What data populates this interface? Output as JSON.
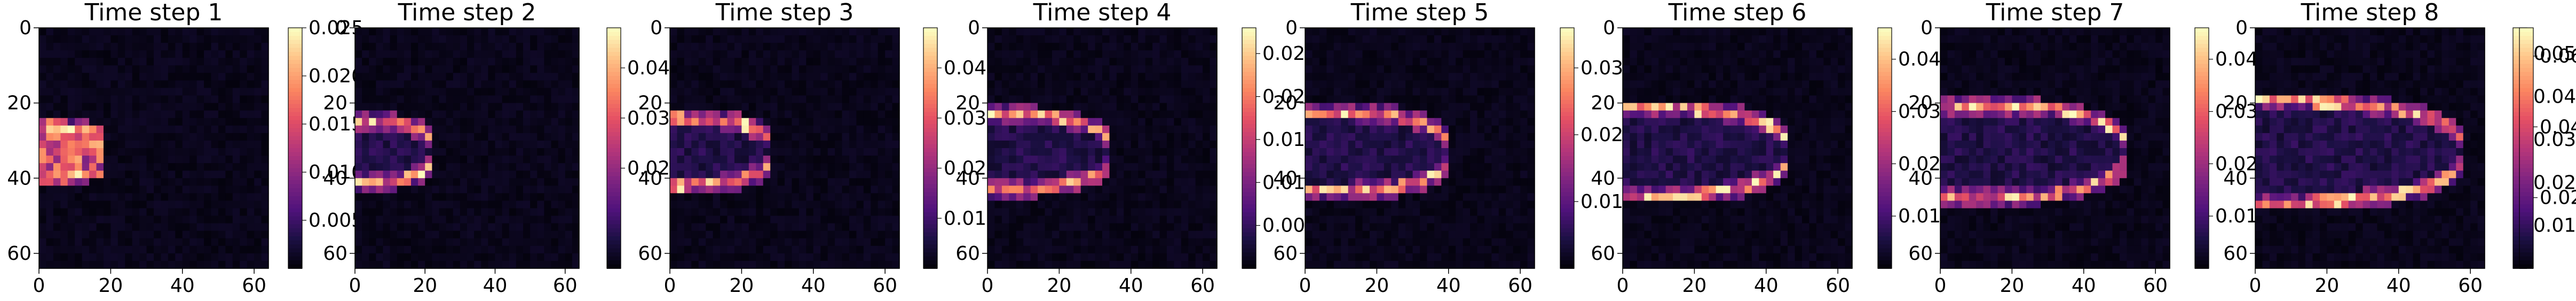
{
  "chart_data": {
    "type": "heatmap",
    "colormap": "magma",
    "grid": false,
    "panels": [
      {
        "title": "Time step 1",
        "x_ticks": [
          "0",
          "20",
          "40",
          "60"
        ],
        "y_ticks": [
          "0",
          "20",
          "40",
          "60"
        ],
        "colorbar_ticks": [
          "0.025",
          "0.020",
          "0.015",
          "0.010",
          "0.005"
        ],
        "colorbar_values": [
          0.025,
          0.02,
          0.015,
          0.01,
          0.005
        ],
        "vmax": 0.025,
        "xlim": [
          0,
          64
        ],
        "ylim": [
          64,
          0
        ]
      },
      {
        "title": "Time step 2",
        "x_ticks": [
          "0",
          "20",
          "40",
          "60"
        ],
        "y_ticks": [
          "0",
          "20",
          "40",
          "60"
        ],
        "colorbar_ticks": [
          "0.04",
          "0.03",
          "0.02"
        ],
        "colorbar_values": [
          0.04,
          0.03,
          0.02
        ],
        "vmax": 0.048,
        "xlim": [
          0,
          64
        ],
        "ylim": [
          64,
          0
        ]
      },
      {
        "title": "Time step 3",
        "x_ticks": [
          "0",
          "20",
          "40",
          "60"
        ],
        "y_ticks": [
          "0",
          "20",
          "40",
          "60"
        ],
        "colorbar_ticks": [
          "0.04",
          "0.03",
          "0.02",
          "0.01"
        ],
        "colorbar_values": [
          0.04,
          0.03,
          0.02,
          0.01
        ],
        "vmax": 0.048,
        "xlim": [
          0,
          64
        ],
        "ylim": [
          64,
          0
        ]
      },
      {
        "title": "Time step 4",
        "x_ticks": [
          "0",
          "20",
          "40",
          "60"
        ],
        "y_ticks": [
          "0",
          "20",
          "40",
          "60"
        ],
        "colorbar_ticks": [
          "0.025",
          "0.020",
          "0.015",
          "0.010",
          "0.005"
        ],
        "colorbar_values": [
          0.025,
          0.02,
          0.015,
          0.01,
          0.005
        ],
        "vmax": 0.028,
        "xlim": [
          0,
          64
        ],
        "ylim": [
          64,
          0
        ]
      },
      {
        "title": "Time step 5",
        "x_ticks": [
          "0",
          "20",
          "40",
          "60"
        ],
        "y_ticks": [
          "0",
          "20",
          "40",
          "60"
        ],
        "colorbar_ticks": [
          "0.03",
          "0.02",
          "0.01"
        ],
        "colorbar_values": [
          0.03,
          0.02,
          0.01
        ],
        "vmax": 0.036,
        "xlim": [
          0,
          64
        ],
        "ylim": [
          64,
          0
        ]
      },
      {
        "title": "Time step 6",
        "x_ticks": [
          "0",
          "20",
          "40",
          "60"
        ],
        "y_ticks": [
          "0",
          "20",
          "40",
          "60"
        ],
        "colorbar_ticks": [
          "0.04",
          "0.03",
          "0.02",
          "0.01"
        ],
        "colorbar_values": [
          0.04,
          0.03,
          0.02,
          0.01
        ],
        "vmax": 0.046,
        "xlim": [
          0,
          64
        ],
        "ylim": [
          64,
          0
        ]
      },
      {
        "title": "Time step 7",
        "x_ticks": [
          "0",
          "20",
          "40",
          "60"
        ],
        "y_ticks": [
          "0",
          "20",
          "40",
          "60"
        ],
        "colorbar_ticks": [
          "0.04",
          "0.03",
          "0.02",
          "0.01"
        ],
        "colorbar_values": [
          0.04,
          0.03,
          0.02,
          0.01
        ],
        "vmax": 0.046,
        "xlim": [
          0,
          64
        ],
        "ylim": [
          64,
          0
        ]
      },
      {
        "title": "Time step 8",
        "x_ticks": [
          "0",
          "20",
          "40",
          "60"
        ],
        "y_ticks": [
          "0",
          "20",
          "40",
          "60"
        ],
        "colorbar_ticks": [
          "0.05",
          "0.04",
          "0.03",
          "0.02",
          "0.01"
        ],
        "colorbar_values": [
          0.05,
          0.04,
          0.03,
          0.02,
          0.01
        ],
        "vmax": 0.056,
        "xlim": [
          0,
          64
        ],
        "ylim": [
          64,
          0
        ]
      },
      {
        "title": "",
        "x_ticks": [],
        "y_ticks": [],
        "colorbar_ticks": [
          "0.06",
          "0.04",
          "0.02"
        ],
        "colorbar_values": [
          0.06,
          0.04,
          0.02
        ],
        "vmax": 0.068,
        "xlim": [
          0,
          64
        ],
        "ylim": [
          64,
          0
        ]
      }
    ]
  }
}
